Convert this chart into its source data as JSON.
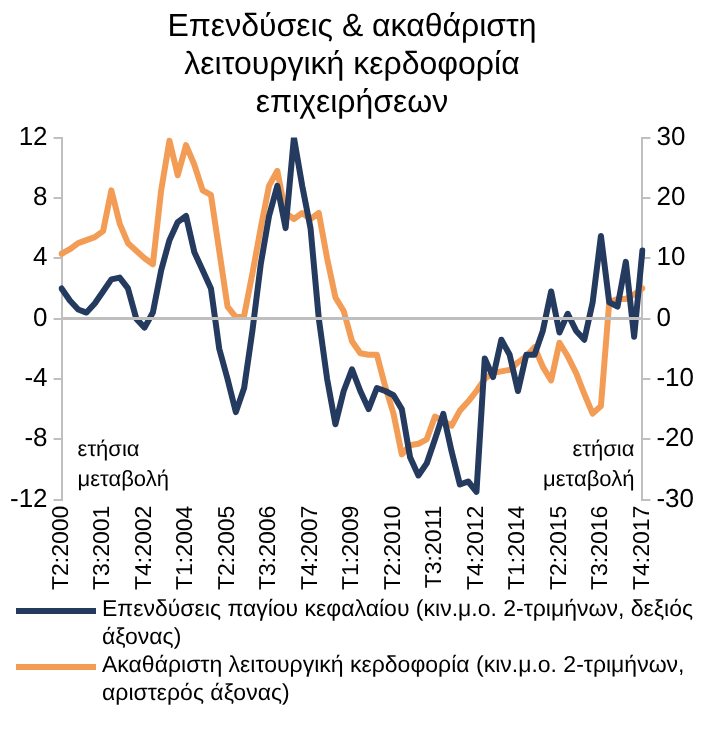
{
  "chart_data": {
    "type": "line",
    "title": "Επενδύσεις & ακαθάριστη λειτουργική κερδοφορία επιχειρήσεων",
    "categories": [
      "T2:2000",
      null,
      null,
      null,
      null,
      "T3:2001",
      null,
      null,
      null,
      null,
      "T4:2002",
      null,
      null,
      null,
      null,
      "T1:2004",
      null,
      null,
      null,
      null,
      "T2:2005",
      null,
      null,
      null,
      null,
      "T3:2006",
      null,
      null,
      null,
      null,
      "T4:2007",
      null,
      null,
      null,
      null,
      "T1:2009",
      null,
      null,
      null,
      null,
      "T2:2010",
      null,
      null,
      null,
      null,
      "T3:2011",
      null,
      null,
      null,
      null,
      "T4:2012",
      null,
      null,
      null,
      null,
      "T1:2014",
      null,
      null,
      null,
      null,
      "T2:2015",
      null,
      null,
      null,
      null,
      "T3:2016",
      null,
      null,
      null,
      null,
      "T4:2017"
    ],
    "series": [
      {
        "name": "Επενδύσεις παγίου κεφαλαίου (κιν.μ.ο. 2-τριμήνων, δεξιός άξονας)",
        "color": "#243a5e",
        "axis": "y2",
        "values": [
          5,
          3,
          1.5,
          1,
          2.5,
          4.5,
          6.5,
          6.8,
          5,
          0,
          -1.5,
          1,
          8,
          13,
          16,
          17,
          11,
          8,
          5,
          -5,
          -10,
          -15.5,
          -11.5,
          -2,
          9,
          17,
          22,
          15,
          30,
          22,
          15,
          0,
          -10,
          -17.5,
          -12,
          -8.4,
          -12,
          -15,
          -11.5,
          -12,
          -12.7,
          -15,
          -23,
          -26,
          -24,
          -20,
          -15.8,
          -22,
          -27.5,
          -27,
          -28.7,
          -6.6,
          -9.7,
          -3.5,
          -6,
          -12,
          -6,
          -6,
          -2,
          4.5,
          -2.3,
          0.8,
          -2,
          -3.5,
          2.7,
          13.7,
          2.7,
          2,
          9.4,
          -3,
          11.3
        ]
      },
      {
        "name": "Ακαθάριστη λειτουργική κερδοφορία (κιν.μ.ο. 2-τριμήνων, αριστερός άξονας)",
        "color": "#f39c56",
        "values": [
          4.3,
          4.6,
          5,
          5.2,
          5.4,
          5.8,
          8.5,
          6.3,
          5,
          4.5,
          4,
          3.6,
          8.5,
          11.8,
          9.5,
          11.5,
          10.2,
          8.5,
          8.2,
          4.5,
          0.8,
          0.1,
          0.2,
          3,
          6,
          8.8,
          9.8,
          7,
          6.6,
          7,
          6.6,
          7,
          4,
          1.4,
          0.5,
          -1.5,
          -2.3,
          -2.4,
          -2.4,
          -4.5,
          -6.3,
          -9,
          -8.4,
          -8.3,
          -8,
          -6.5,
          -6.8,
          -7.1,
          -6.1,
          -5.5,
          -4.8,
          -4,
          -3.6,
          -3.5,
          -3.4,
          -2.9,
          -2.5,
          -1.9,
          -3.2,
          -4.1,
          -1.6,
          -2.5,
          -3.6,
          -5,
          -6.3,
          -5.8,
          1.1,
          1.3,
          1.3,
          1.6,
          2
        ]
      }
    ],
    "ylim": [
      -12,
      12
    ],
    "yticks": [
      -12,
      -8,
      -4,
      0,
      4,
      8,
      12
    ],
    "y2lim": [
      -30,
      30
    ],
    "y2ticks": [
      -30,
      -20,
      -10,
      0,
      10,
      20,
      30
    ],
    "ref_lines": [
      {
        "axis": "y",
        "value": 0,
        "color": "#bfbfbf"
      }
    ],
    "annotations": [
      "ετήσια μεταβολή",
      "ετήσια μεταβολή"
    ],
    "grid": false,
    "legend": "bottom",
    "marker": "none",
    "line_style": "solid"
  }
}
